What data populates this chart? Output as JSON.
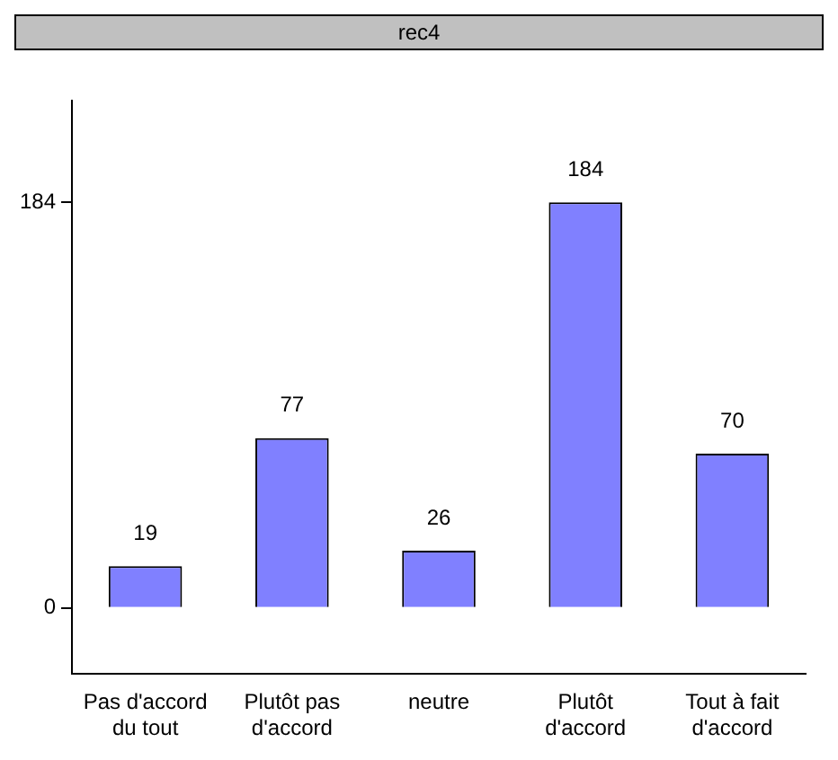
{
  "chart_data": {
    "type": "bar",
    "title": "rec4",
    "categories": [
      "Pas d'accord du tout",
      "Plutôt pas d'accord",
      "neutre",
      "Plutôt d'accord",
      "Tout à fait d'accord"
    ],
    "values": [
      19,
      77,
      26,
      184,
      70
    ],
    "color": "#8080ff",
    "ylim": [
      -30,
      230
    ],
    "yticks": [
      0,
      184
    ],
    "grid": false,
    "legend": false,
    "data_labels": true
  }
}
